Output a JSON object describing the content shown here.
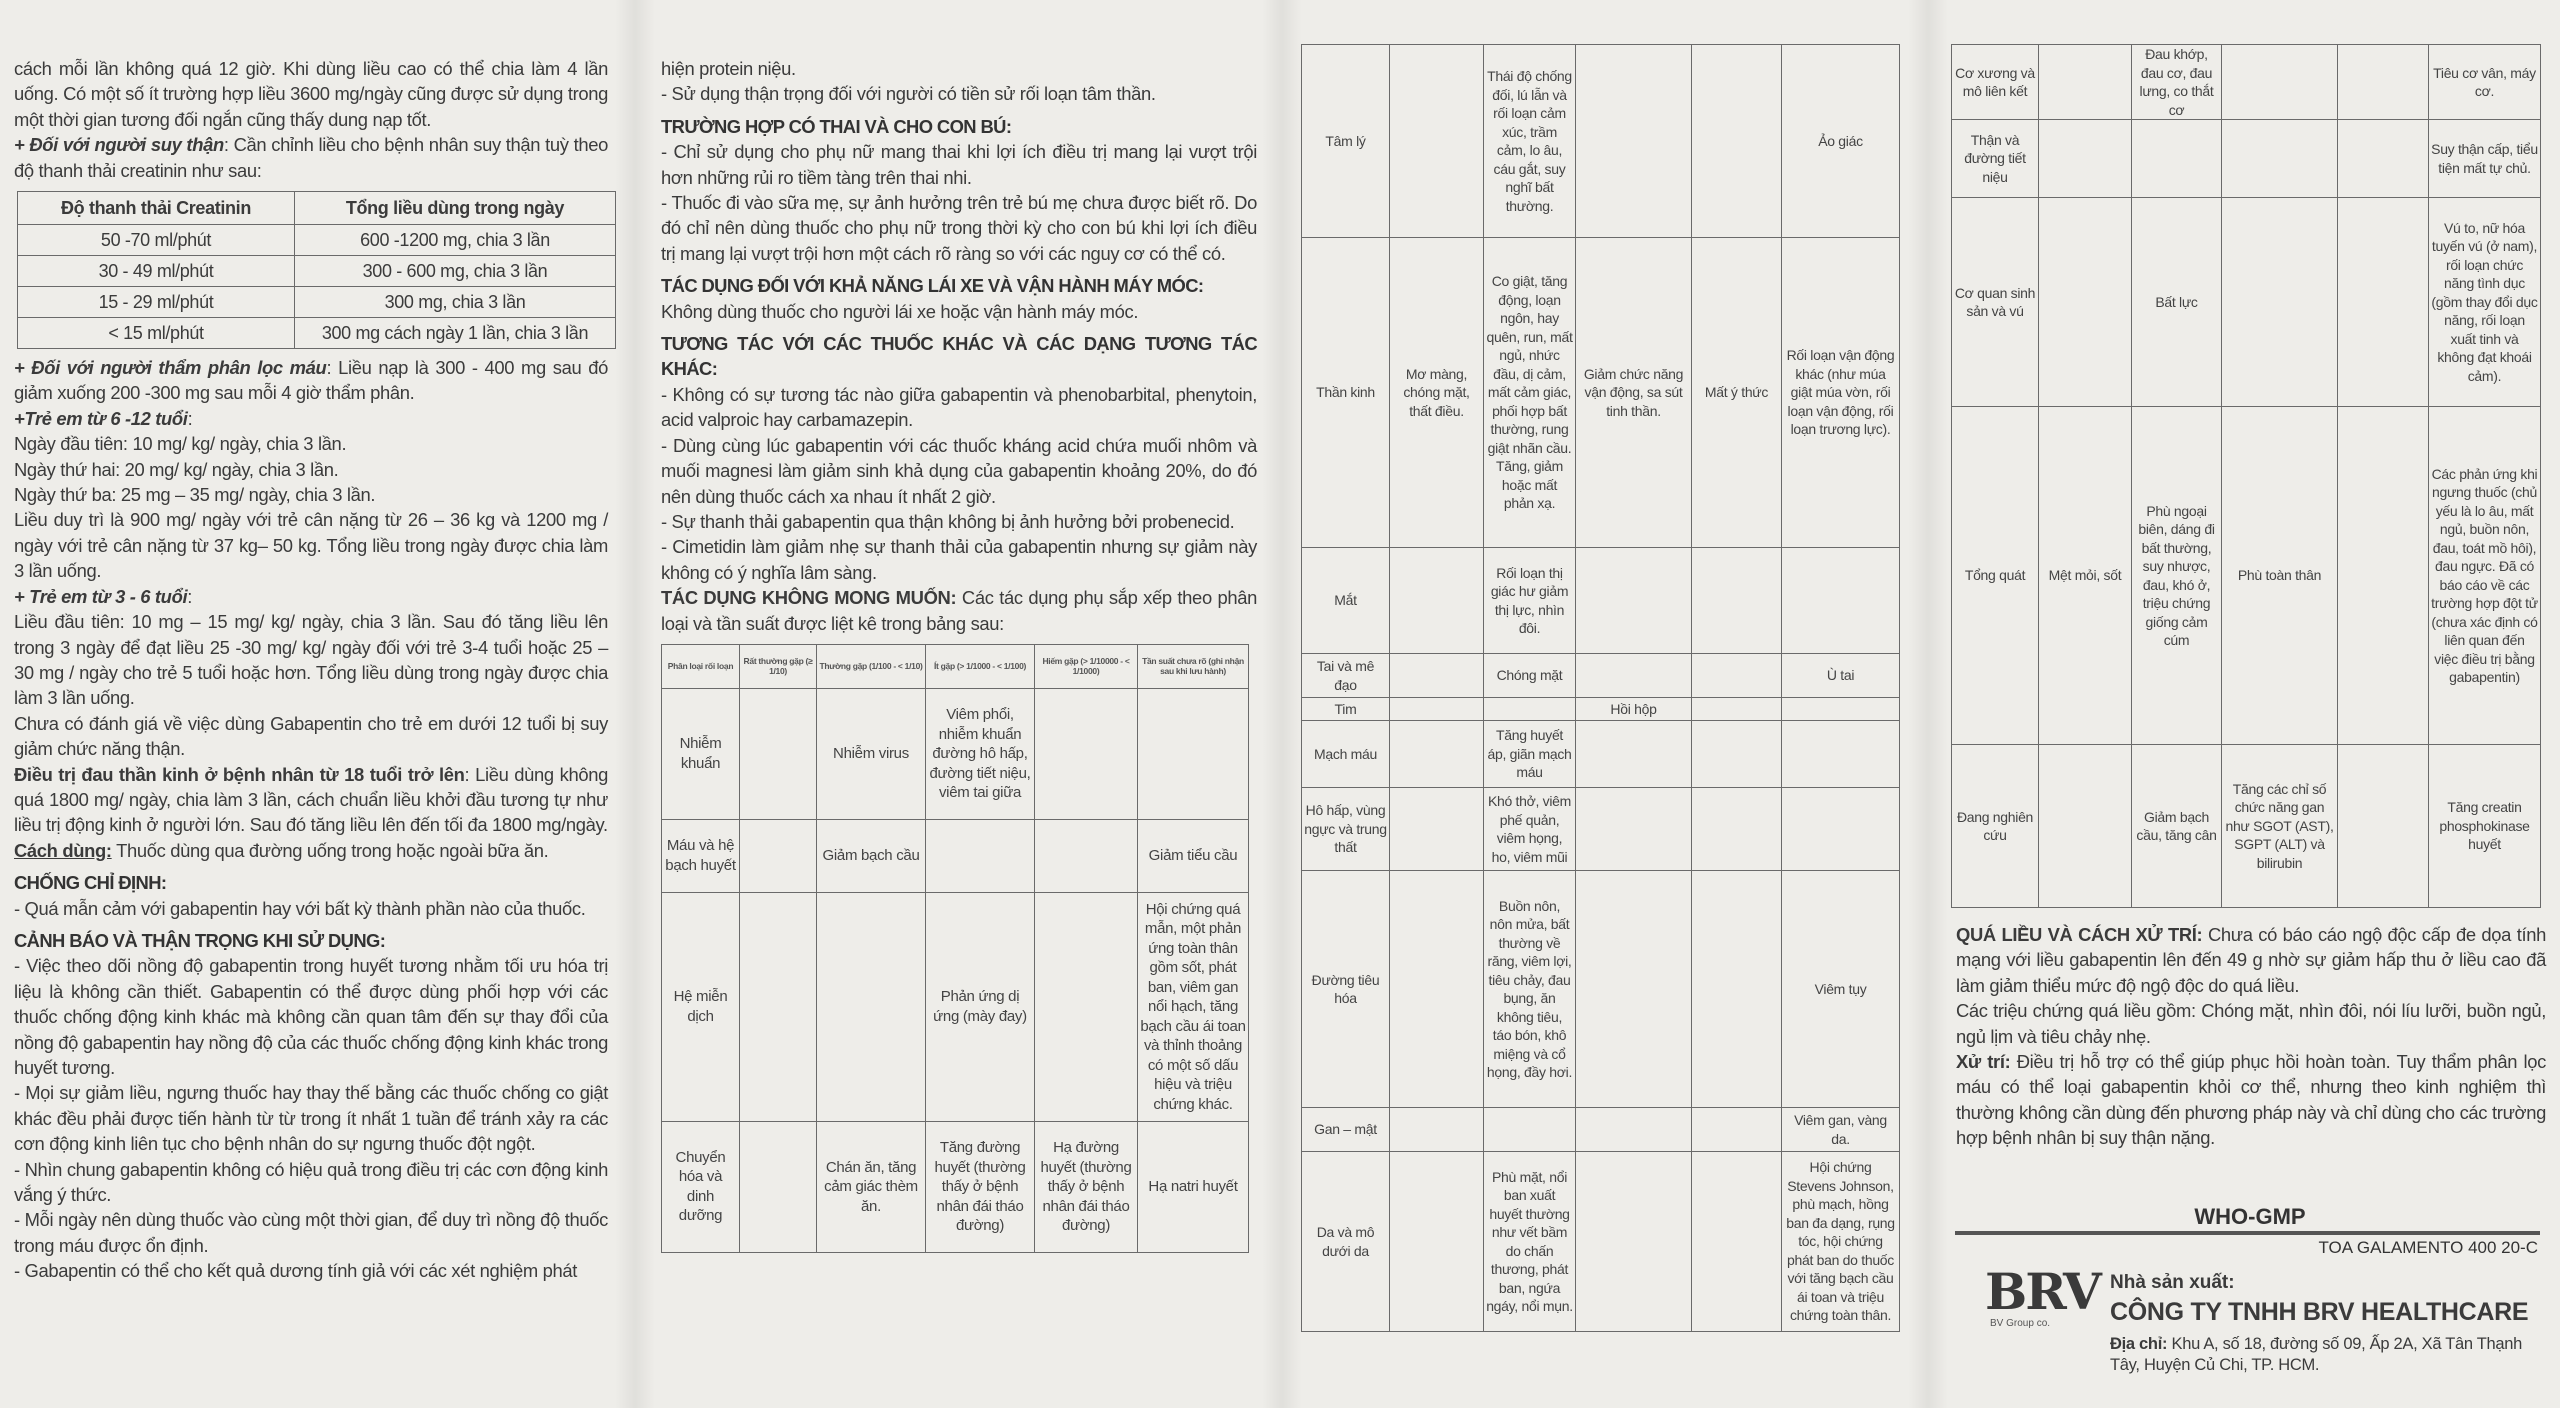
{
  "col1": [
    {
      "text": "cách mỗi lần không quá 12 giờ. Khi dùng liều cao có thể chia làm 4 lần uống. Có một số ít trường hợp liều 3600 mg/ngày cũng được sử dụng trong một thời gian tương đối ngắn cũng thấy dung nạp tốt."
    },
    {
      "lead": "+ Đối với người suy thận",
      "style": "bi",
      "text": ": Cần chỉnh liều cho bệnh nhân suy thận tuỳ theo độ thanh thải creatinin như sau:"
    },
    {
      "table": "renal"
    },
    {
      "lead": "+ Đối với người thẩm phân lọc máu",
      "style": "bi",
      "text": ": Liều nạp là 300 - 400 mg sau đó giảm xuống 200 -300 mg sau mỗi 4 giờ thẩm phân."
    },
    {
      "lead": "+Trẻ em từ 6 -12 tuổi",
      "style": "bi",
      "text": ":"
    },
    {
      "text": "Ngày đầu tiên: 10 mg/ kg/ ngày, chia 3 lần."
    },
    {
      "text": "Ngày thứ hai: 20 mg/ kg/ ngày, chia 3 lần."
    },
    {
      "text": "Ngày thứ ba: 25 mg – 35 mg/ ngày, chia 3 lần."
    },
    {
      "text": "Liều duy trì là 900 mg/ ngày với trẻ cân nặng từ 26 – 36 kg và 1200 mg / ngày với trẻ cân nặng từ 37 kg– 50 kg. Tổng liều trong ngày được chia làm 3 lần uống."
    },
    {
      "lead": "+ Trẻ em từ 3 - 6 tuổi",
      "style": "bi",
      "text": ":"
    },
    {
      "text": "Liều đầu tiên: 10 mg – 15 mg/ kg/ ngày, chia 3 lần. Sau đó tăng liều lên trong 3 ngày để đạt liều 25 -30 mg/ kg/ ngày đối với trẻ 3-4 tuổi hoặc 25 – 30 mg / ngày cho trẻ 5 tuổi hoặc hơn. Tổng liều dùng trong ngày được chia làm 3 lần uống."
    },
    {
      "text": "Chưa có đánh giá về việc dùng Gabapentin cho trẻ em dưới 12 tuổi bị suy giảm chức năng thận."
    },
    {
      "lead": "Điều trị đau thần kinh ở bệnh nhân từ 18 tuổi trở lên",
      "style": "b",
      "text": ": Liều dùng không quá 1800 mg/ ngày, chia làm 3 lần, cách chuẩn liều khởi đầu tương tự như liều trị động kinh ở người lớn. Sau đó tăng liều lên đến tối đa 1800 mg/ngày."
    },
    {
      "lead": "Cách dùng:",
      "style": "bu",
      "text": " Thuốc dùng qua đường uống trong hoặc ngoài bữa ăn."
    },
    {
      "heading": "CHỐNG CHỈ ĐỊNH:"
    },
    {
      "text": "- Quá mẫn cảm với gabapentin hay với bất kỳ thành phần nào của thuốc."
    },
    {
      "heading": "CẢNH BÁO VÀ THẬN TRỌNG KHI SỬ DỤNG:"
    },
    {
      "text": "- Việc theo dõi nồng độ gabapentin trong huyết tương nhằm tối ưu hóa trị liệu là không cần thiết. Gabapentin có thể được dùng phối hợp với các thuốc chống động kinh khác mà không cần quan tâm đến sự thay đổi của nồng độ gabapentin hay nồng độ của các thuốc chống động kinh khác trong huyết tương."
    },
    {
      "text": "- Mọi sự giảm liều, ngưng thuốc hay thay thế bằng các thuốc chống co giật khác đều phải được tiến hành từ từ trong ít nhất 1 tuần để tránh xảy ra các cơn động kinh liên tục cho bệnh nhân do sự ngưng thuốc đột ngột."
    },
    {
      "text": "- Nhìn chung gabapentin không có hiệu quả trong điều trị các cơn động kinh vắng ý thức."
    },
    {
      "text": "- Mỗi ngày nên dùng thuốc vào cùng một thời gian, để duy trì nồng độ thuốc trong máu được ổn định."
    },
    {
      "text": "- Gabapentin có thể cho kết quả dương tính giả với các xét nghiệm phát"
    }
  ],
  "col2": [
    {
      "text": "hiện protein niệu."
    },
    {
      "text": "- Sử dụng thận trọng đối với người có tiền sử rối loạn tâm thần."
    },
    {
      "heading": "TRƯỜNG HỢP CÓ THAI VÀ CHO CON BÚ:"
    },
    {
      "text": "- Chỉ sử dụng cho phụ nữ mang thai khi lợi ích điều trị mang lại vượt trội hơn những rủi ro tiềm tàng trên thai nhi."
    },
    {
      "text": "- Thuốc đi vào sữa mẹ, sự ảnh hưởng trên trẻ bú mẹ chưa được biết rõ. Do đó chỉ nên dùng thuốc cho phụ nữ trong thời kỳ cho con bú khi lợi ích điều trị mang lại vượt trội hơn một cách rõ ràng so với các nguy cơ có thể có."
    },
    {
      "heading": "TÁC DỤNG ĐỐI VỚI KHẢ NĂNG LÁI XE VÀ VẬN HÀNH MÁY MÓC:"
    },
    {
      "text": "Không dùng thuốc cho người lái xe hoặc vận hành máy móc."
    },
    {
      "heading": "TƯƠNG TÁC VỚI CÁC THUỐC KHÁC VÀ CÁC DẠNG TƯƠNG TÁC KHÁC:"
    },
    {
      "text": "- Không có sự tương tác nào giữa gabapentin và phenobarbital, phenytoin, acid valproic hay carbamazepin."
    },
    {
      "text": "- Dùng cùng lúc gabapentin với các thuốc kháng acid chứa muối nhôm và muối magnesi làm giảm sinh khả dụng của gabapentin khoảng 20%, do đó nên dùng thuốc cách xa nhau ít nhất 2 giờ."
    },
    {
      "text": "- Sự thanh thải gabapentin qua thận không bị ảnh hưởng bởi probenecid."
    },
    {
      "text": "- Cimetidin làm giảm nhẹ sự thanh thải của gabapentin nhưng sự giảm này không có ý nghĩa lâm sàng."
    },
    {
      "lead": "TÁC DỤNG KHÔNG MONG MUỐN:",
      "style": "b",
      "text": " Các tác dụng phụ sắp xếp theo phân loại và tần suất được liệt kê trong bảng sau:"
    },
    {
      "table": "adverse"
    }
  ],
  "renal_table": {
    "headers": [
      "Độ thanh thải Creatinin",
      "Tổng liều dùng trong ngày"
    ],
    "rows": [
      [
        "50 -70  ml/phút",
        "600 -1200 mg, chia 3 lần"
      ],
      [
        "30 - 49  ml/phút",
        "300 - 600 mg, chia 3 lần"
      ],
      [
        "15 - 29  ml/phút",
        "300 mg, chia 3 lần"
      ],
      [
        "< 15  ml/phút",
        "300 mg cách ngày 1 lần, chia 3 lần"
      ]
    ]
  },
  "adverse_table": {
    "headers": [
      "Phân loại rối loạn",
      "Rất thường gặp (≥ 1/10)",
      "Thường gặp (1/100 - < 1/10)",
      "Ít gặp (> 1/1000 - < 1/100)",
      "Hiếm gặp (> 1/10000 - < 1/1000)",
      "Tần suất chưa rõ (ghi nhận sau khi lưu hành)"
    ],
    "rows": [
      [
        "Nhiễm khuẩn",
        "",
        "Nhiễm virus",
        "Viêm phổi, nhiễm khuẩn đường hô hấp, đường tiết niệu, viêm tai giữa",
        "",
        ""
      ],
      [
        "Máu và hệ bạch huyết",
        "",
        "Giảm bạch cầu",
        "",
        "",
        "Giảm tiểu cầu"
      ],
      [
        "Hệ miễn dịch",
        "",
        "",
        "Phản ứng dị ứng (mày đay)",
        "",
        "Hội chứng quá mẫn, một phản ứng toàn thân gồm sốt, phát ban, viêm gan nổi hạch, tăng bạch cầu ái toan và thỉnh thoảng có một số dấu hiệu và triệu chứng khác."
      ],
      [
        "Chuyển hóa và dinh dưỡng",
        "",
        "Chán ăn, tăng cảm giác thèm ăn.",
        "Tăng đường huyết (thường thấy ở bệnh nhân đái tháo đường)",
        "Hạ đường huyết (thường thấy ở bệnh nhân đái tháo đường)",
        "Hạ natri huyết"
      ],
      [
        "Tâm lý",
        "",
        "Thái độ chống đối, lú lẫn và rối loạn cảm xúc, trầm cảm, lo âu, cáu gắt, suy nghĩ bất thường.",
        "",
        "",
        "Ảo giác"
      ],
      [
        "Thần kinh",
        "Mơ màng, chóng mặt, thất điều.",
        "Co giật, tăng động, loạn ngôn, hay quên, run, mất ngủ, nhức đầu, dị cảm, mất cảm giác, phối hợp bất thường, rung giật nhãn cầu. Tăng, giảm hoặc mất phản xạ.",
        "Giảm chức năng vận động, sa sút tinh thần.",
        "Mất ý thức",
        "Rối loạn vận động khác (như múa giật múa vờn, rối loạn vận động, rối loạn trương lực)."
      ],
      [
        "Mắt",
        "",
        "Rối loạn thị giác hư giảm thị lực, nhìn đôi.",
        "",
        "",
        ""
      ],
      [
        "Tai và mê đạo",
        "",
        "Chóng mặt",
        "",
        "",
        "Ù tai"
      ],
      [
        "Tim",
        "",
        "",
        "Hồi hộp",
        "",
        ""
      ],
      [
        "Mạch máu",
        "",
        "Tăng huyết áp, giãn mạch máu",
        "",
        "",
        ""
      ],
      [
        "Hô hấp, vùng ngực và trung thất",
        "",
        "Khó thở, viêm phế quản, viêm họng, ho, viêm mũi",
        "",
        "",
        ""
      ],
      [
        "Đường tiêu hóa",
        "",
        "Buồn nôn, nôn mửa, bất thường về răng, viêm lợi, tiêu chảy, đau bụng, ăn không tiêu, táo bón, khô miệng và cổ họng, đầy hơi.",
        "",
        "",
        "Viêm tụy"
      ],
      [
        "Gan – mật",
        "",
        "",
        "",
        "",
        "Viêm gan, vàng da."
      ],
      [
        "Da và mô dưới da",
        "",
        "Phù mặt, nổi ban xuất huyết thường như vết bầm do chấn thương, phát ban, ngứa ngáy, nổi mụn.",
        "",
        "",
        "Hội chứng Stevens Johnson, phù mạch, hồng ban đa dạng, rụng tóc, hội chứng phát ban do thuốc với tăng bạch cầu ái toan và triệu chứng toàn thân."
      ],
      [
        "Cơ xương và mô liên kết",
        "",
        "Đau khớp, đau cơ, đau lưng, co thắt cơ",
        "",
        "",
        "Tiêu cơ vân, máy cơ."
      ],
      [
        "Thận và đường tiết niệu",
        "",
        "",
        "",
        "",
        "Suy thận cấp, tiểu tiện mất tự chủ."
      ],
      [
        "Cơ quan sinh sản và vú",
        "",
        "Bất lực",
        "",
        "",
        "Vú to, nữ hóa tuyến vú (ở nam), rối loạn chức năng tình dục (gồm thay đổi dục năng, rối loạn xuất tinh và không đạt khoái cảm)."
      ],
      [
        "Tổng quát",
        "Mệt mỏi, sốt",
        "Phù ngoại biên, dáng đi bất thường, suy nhược, đau, khó ở, triệu chứng giống cảm cúm",
        "Phù toàn thân",
        "",
        "Các phản ứng khi ngưng thuốc (chủ yếu là lo âu, mất ngủ, buồn nôn, đau, toát mồ hôi), đau ngực. Đã có báo cáo về các trường hợp đột tử (chưa xác định có liên quan đến việc điều trị bằng gabapentin)"
      ],
      [
        "Đang nghiên cứu",
        "",
        "Giảm bạch cầu, tăng cân",
        "Tăng các chỉ số chức năng gan như SGOT (AST), SGPT (ALT) và bilirubin",
        "",
        "Tăng creatin phosphokinase huyết"
      ]
    ]
  },
  "col4": [
    {
      "lead": "QUÁ LIỀU VÀ CÁCH XỬ TRÍ:",
      "style": "b",
      "text": " Chưa có báo cáo ngộ độc cấp đe dọa tính mạng với liều gabapentin lên đến 49 g nhờ sự giảm hấp thu ở liều cao đã làm giảm thiểu mức độ ngộ độc do quá liều."
    },
    {
      "text": "Các triệu chứng quá liều gồm: Chóng mặt, nhìn đôi, nói líu lưỡi, buồn ngủ, ngủ lịm và tiêu chảy nhẹ."
    },
    {
      "lead": "Xử trí:",
      "style": "b",
      "text": " Điều trị hỗ trợ có thể giúp phục hồi hoàn toàn. Tuy thẩm phân lọc máu có thể loại gabapentin khỏi cơ thể, nhưng theo kinh nghiệm thì thường không cần dùng đến phương pháp này và chỉ dùng cho các trường hợp bệnh nhân bị suy thận nặng."
    }
  ],
  "footer": {
    "standard": "WHO-GMP",
    "doc_code": "TOA GALAMENTO 400 20-C",
    "logo": "BRV",
    "logo_sub": "BV Group co.",
    "maker_label": "Nhà sản xuất:",
    "company": "CÔNG TY TNHH BRV HEALTHCARE",
    "address_label": "Địa chỉ:",
    "address": " Khu A, số 18, đường số 09, Ấp 2A, Xã Tân Thạnh Tây, Huyện Củ Chi, TP. HCM."
  }
}
